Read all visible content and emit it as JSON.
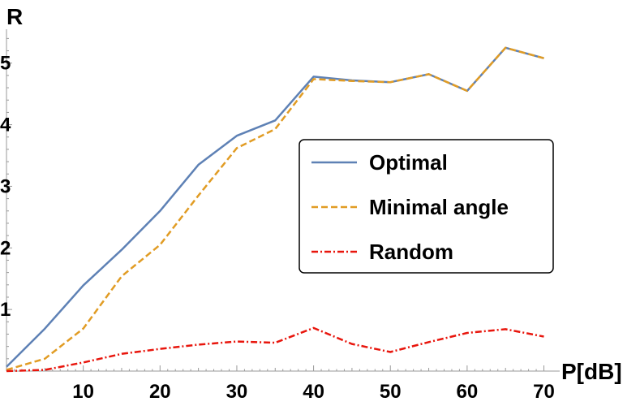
{
  "chart_data": {
    "type": "line",
    "xlabel": "P[dB]",
    "ylabel": "R",
    "xlim": [
      0,
      71
    ],
    "ylim": [
      0,
      5.55
    ],
    "x_ticks": [
      10,
      20,
      30,
      40,
      50,
      60,
      70
    ],
    "y_ticks": [
      1,
      2,
      3,
      4,
      5
    ],
    "grid": false,
    "legend_position": "middle-right",
    "x": [
      0,
      5,
      10,
      15,
      20,
      25,
      30,
      35,
      40,
      45,
      50,
      55,
      60,
      65,
      70
    ],
    "series": [
      {
        "name": "Optimal",
        "color": "#5e81b5",
        "dash": "solid",
        "values": [
          0.07,
          0.69,
          1.39,
          1.97,
          2.6,
          3.35,
          3.82,
          4.07,
          4.78,
          4.72,
          4.69,
          4.82,
          4.55,
          5.25,
          5.08
        ]
      },
      {
        "name": "Minimal angle",
        "color": "#e19c24",
        "dash": "dashed",
        "values": [
          0.02,
          0.2,
          0.69,
          1.54,
          2.05,
          2.85,
          3.62,
          3.93,
          4.74,
          4.71,
          4.69,
          4.82,
          4.55,
          5.25,
          5.08
        ]
      },
      {
        "name": "Random",
        "color": "#e8160d",
        "dash": "dot-dash",
        "values": [
          0.0,
          0.02,
          0.14,
          0.28,
          0.36,
          0.43,
          0.48,
          0.46,
          0.7,
          0.44,
          0.31,
          0.47,
          0.62,
          0.68,
          0.56
        ]
      }
    ]
  }
}
